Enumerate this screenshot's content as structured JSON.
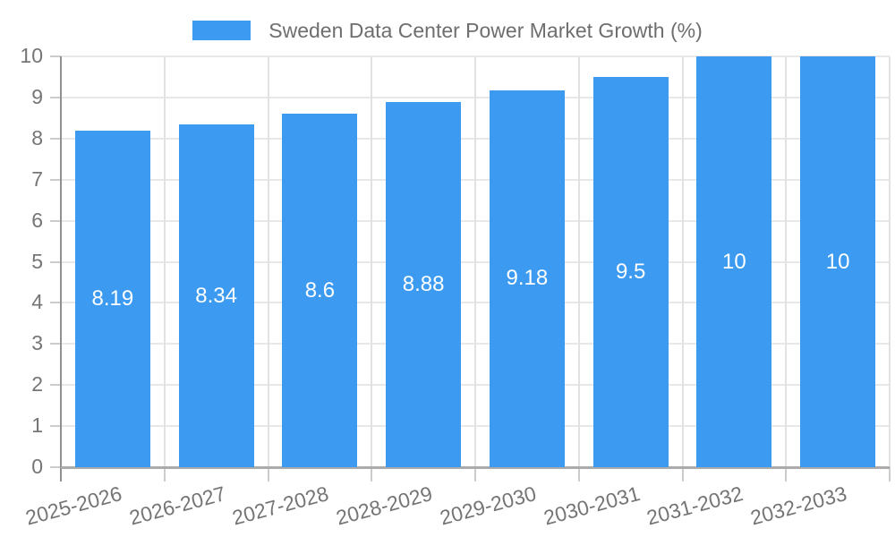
{
  "chart_data": {
    "type": "bar",
    "title": "Sweden Data Center Power Market Growth (%)",
    "legend": {
      "position": "top",
      "label": "Sweden Data Center Power Market Growth (%)"
    },
    "categories": [
      "2025-2026",
      "2026-2027",
      "2027-2028",
      "2028-2029",
      "2029-2030",
      "2030-2031",
      "2031-2032",
      "2032-2033"
    ],
    "values": [
      8.19,
      8.34,
      8.6,
      8.88,
      9.18,
      9.5,
      10,
      10
    ],
    "value_labels": [
      "8.19",
      "8.34",
      "8.6",
      "8.88",
      "9.18",
      "9.5",
      "10",
      "10"
    ],
    "xlabel": "",
    "ylabel": "",
    "ylim": [
      0,
      10
    ],
    "yticks": [
      0,
      1,
      2,
      3,
      4,
      5,
      6,
      7,
      8,
      9,
      10
    ],
    "grid": true,
    "x_label_rotation_deg": -15,
    "colors": {
      "bar": "#3C9BF0",
      "bar_label": "#FFFFFF",
      "axis_text": "#757575",
      "legend_text": "#6E6E6E",
      "gridline": "#E8E8E8",
      "gridline_vertical": "#E2E2E2",
      "axis_line_y": "#909090",
      "axis_line_x": "#ABABAB",
      "tick": "#CCCCCC",
      "background": "#FFFFFF"
    }
  }
}
